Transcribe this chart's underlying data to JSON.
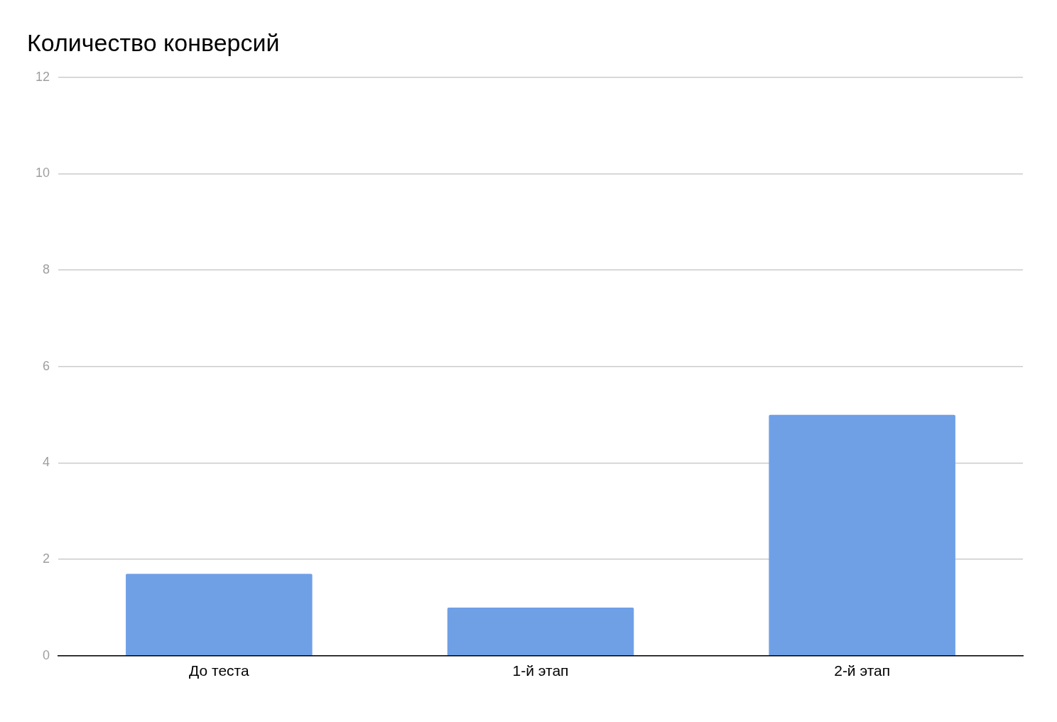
{
  "chart_data": {
    "type": "bar",
    "title": "Количество конверсий",
    "categories": [
      "До теста",
      "1-й этап",
      "2-й этап"
    ],
    "values": [
      1.7,
      1.0,
      5.0
    ],
    "color": "#6fa0e6",
    "ylim": [
      0,
      12
    ],
    "yticks": [
      0,
      2,
      4,
      6,
      8,
      10,
      12
    ],
    "grid": "y",
    "legend": false
  }
}
